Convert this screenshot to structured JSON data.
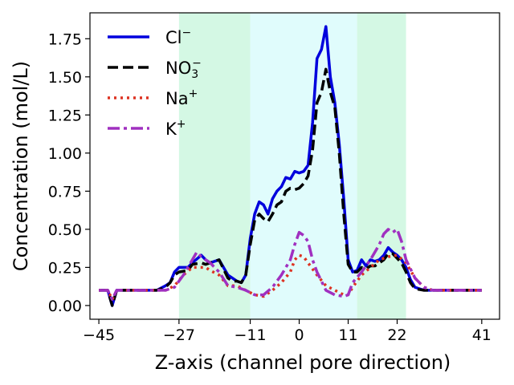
{
  "chart_data": {
    "type": "line",
    "xlabel": "Z-axis (channel pore direction)",
    "ylabel": "Concentration (mol/L)",
    "xlim": [
      -47,
      45
    ],
    "ylim": [
      -0.09,
      1.92
    ],
    "xticks": [
      -45,
      -27,
      -11,
      0,
      11,
      22,
      41
    ],
    "yticks": [
      0.0,
      0.25,
      0.5,
      0.75,
      1.0,
      1.25,
      1.5,
      1.75
    ],
    "ytick_labels": [
      "0.00",
      "0.25",
      "0.50",
      "0.75",
      "1.00",
      "1.25",
      "1.50",
      "1.75"
    ],
    "grid": false,
    "legend_position": "top-left",
    "regions": [
      {
        "name": "region-left",
        "x0": -27,
        "x1": -11,
        "color": "#d4f8e4"
      },
      {
        "name": "region-center",
        "x0": -11,
        "x1": 13,
        "color": "#e0fcfc"
      },
      {
        "name": "region-right",
        "x0": 13,
        "x1": 24,
        "color": "#d4f8e4"
      }
    ],
    "series": [
      {
        "name": "Cl",
        "legend_sup": "−",
        "color": "#0000dd",
        "dash": "",
        "width": 3.5,
        "x": [
          -45,
          -43,
          -42,
          -41,
          -40,
          -38,
          -36,
          -34,
          -32,
          -30,
          -29,
          -28,
          -27,
          -25,
          -24,
          -22,
          -21,
          -20,
          -18,
          -17,
          -16,
          -15,
          -14,
          -13,
          -12,
          -11,
          -10,
          -9,
          -8,
          -7,
          -6,
          -5,
          -4,
          -3,
          -2,
          -1,
          0,
          1,
          2,
          3,
          4,
          5,
          6,
          7,
          8,
          9,
          10,
          11,
          12,
          13,
          14,
          15,
          16,
          17,
          18,
          19,
          20,
          21,
          22,
          23,
          24,
          25,
          26,
          28,
          30,
          32,
          34,
          36,
          38,
          40,
          41
        ],
        "y": [
          0.1,
          0.1,
          0.0,
          0.1,
          0.1,
          0.1,
          0.1,
          0.1,
          0.1,
          0.13,
          0.15,
          0.22,
          0.25,
          0.25,
          0.28,
          0.33,
          0.3,
          0.28,
          0.3,
          0.25,
          0.2,
          0.18,
          0.16,
          0.15,
          0.2,
          0.44,
          0.6,
          0.68,
          0.66,
          0.6,
          0.7,
          0.75,
          0.78,
          0.84,
          0.83,
          0.88,
          0.87,
          0.88,
          0.92,
          1.2,
          1.62,
          1.68,
          1.83,
          1.5,
          1.33,
          1.06,
          0.7,
          0.3,
          0.22,
          0.23,
          0.3,
          0.26,
          0.3,
          0.29,
          0.3,
          0.33,
          0.38,
          0.35,
          0.33,
          0.3,
          0.25,
          0.17,
          0.12,
          0.1,
          0.1,
          0.1,
          0.1,
          0.1,
          0.1,
          0.1,
          0.1
        ]
      },
      {
        "name": "NO",
        "legend_sub": "3",
        "legend_sup": "−",
        "color": "#000000",
        "dash": "13,6",
        "width": 3.5,
        "x": [
          -45,
          -43,
          -42,
          -41,
          -40,
          -38,
          -36,
          -34,
          -32,
          -30,
          -29,
          -28,
          -27,
          -25,
          -24,
          -22,
          -21,
          -20,
          -18,
          -17,
          -16,
          -15,
          -14,
          -13,
          -12,
          -11,
          -10,
          -9,
          -8,
          -7,
          -6,
          -5,
          -4,
          -3,
          -2,
          -1,
          0,
          1,
          2,
          3,
          4,
          5,
          6,
          7,
          8,
          9,
          10,
          11,
          12,
          13,
          14,
          15,
          16,
          17,
          18,
          19,
          20,
          21,
          22,
          23,
          24,
          25,
          26,
          28,
          30,
          32,
          34,
          36,
          38,
          40,
          41
        ],
        "y": [
          0.1,
          0.1,
          0.0,
          0.1,
          0.1,
          0.1,
          0.1,
          0.1,
          0.1,
          0.12,
          0.15,
          0.2,
          0.22,
          0.23,
          0.27,
          0.28,
          0.27,
          0.28,
          0.3,
          0.24,
          0.18,
          0.16,
          0.16,
          0.15,
          0.2,
          0.4,
          0.56,
          0.6,
          0.57,
          0.55,
          0.6,
          0.66,
          0.68,
          0.75,
          0.77,
          0.76,
          0.77,
          0.8,
          0.85,
          1.02,
          1.33,
          1.4,
          1.55,
          1.4,
          1.3,
          1.0,
          0.6,
          0.27,
          0.22,
          0.22,
          0.25,
          0.24,
          0.26,
          0.26,
          0.28,
          0.3,
          0.34,
          0.34,
          0.31,
          0.28,
          0.22,
          0.15,
          0.11,
          0.1,
          0.1,
          0.1,
          0.1,
          0.1,
          0.1,
          0.1,
          0.1
        ]
      },
      {
        "name": "Na",
        "legend_sup": "+",
        "color": "#dd3322",
        "dash": "3,5",
        "width": 3.5,
        "x": [
          -45,
          -43,
          -42,
          -41,
          -40,
          -38,
          -36,
          -34,
          -32,
          -30,
          -28,
          -26,
          -24,
          -22,
          -21,
          -20,
          -18,
          -16,
          -14,
          -12,
          -10,
          -8,
          -6,
          -4,
          -2,
          -1,
          0,
          1,
          2,
          4,
          6,
          8,
          10,
          11,
          12,
          14,
          16,
          18,
          20,
          22,
          24,
          26,
          28,
          30,
          32,
          34,
          36,
          38,
          40,
          41
        ],
        "y": [
          0.1,
          0.1,
          0.04,
          0.1,
          0.1,
          0.1,
          0.1,
          0.1,
          0.1,
          0.1,
          0.13,
          0.2,
          0.25,
          0.25,
          0.25,
          0.23,
          0.2,
          0.13,
          0.13,
          0.1,
          0.07,
          0.06,
          0.1,
          0.15,
          0.22,
          0.3,
          0.33,
          0.32,
          0.28,
          0.2,
          0.13,
          0.1,
          0.07,
          0.07,
          0.12,
          0.2,
          0.25,
          0.3,
          0.32,
          0.33,
          0.28,
          0.18,
          0.12,
          0.1,
          0.1,
          0.1,
          0.1,
          0.1,
          0.1,
          0.1
        ]
      },
      {
        "name": "K",
        "legend_sup": "+",
        "color": "#a030c0",
        "dash": "15,5,4,5",
        "width": 3.5,
        "x": [
          -45,
          -43,
          -42,
          -41,
          -40,
          -38,
          -36,
          -34,
          -32,
          -30,
          -28,
          -26,
          -24,
          -23,
          -22,
          -21,
          -20,
          -18,
          -16,
          -14,
          -12,
          -10,
          -8,
          -6,
          -4,
          -2,
          -1,
          0,
          1,
          2,
          3,
          4,
          6,
          8,
          10,
          11,
          12,
          14,
          16,
          18,
          19,
          20,
          21,
          22,
          23,
          24,
          26,
          28,
          30,
          32,
          34,
          36,
          38,
          40,
          41
        ],
        "y": [
          0.1,
          0.1,
          0.04,
          0.1,
          0.1,
          0.1,
          0.1,
          0.1,
          0.1,
          0.1,
          0.12,
          0.2,
          0.3,
          0.35,
          0.32,
          0.3,
          0.28,
          0.22,
          0.13,
          0.12,
          0.1,
          0.07,
          0.07,
          0.12,
          0.2,
          0.3,
          0.4,
          0.48,
          0.46,
          0.42,
          0.3,
          0.22,
          0.1,
          0.07,
          0.06,
          0.07,
          0.15,
          0.22,
          0.3,
          0.4,
          0.47,
          0.5,
          0.48,
          0.5,
          0.42,
          0.3,
          0.18,
          0.12,
          0.1,
          0.1,
          0.1,
          0.1,
          0.1,
          0.1,
          0.1
        ]
      }
    ]
  }
}
